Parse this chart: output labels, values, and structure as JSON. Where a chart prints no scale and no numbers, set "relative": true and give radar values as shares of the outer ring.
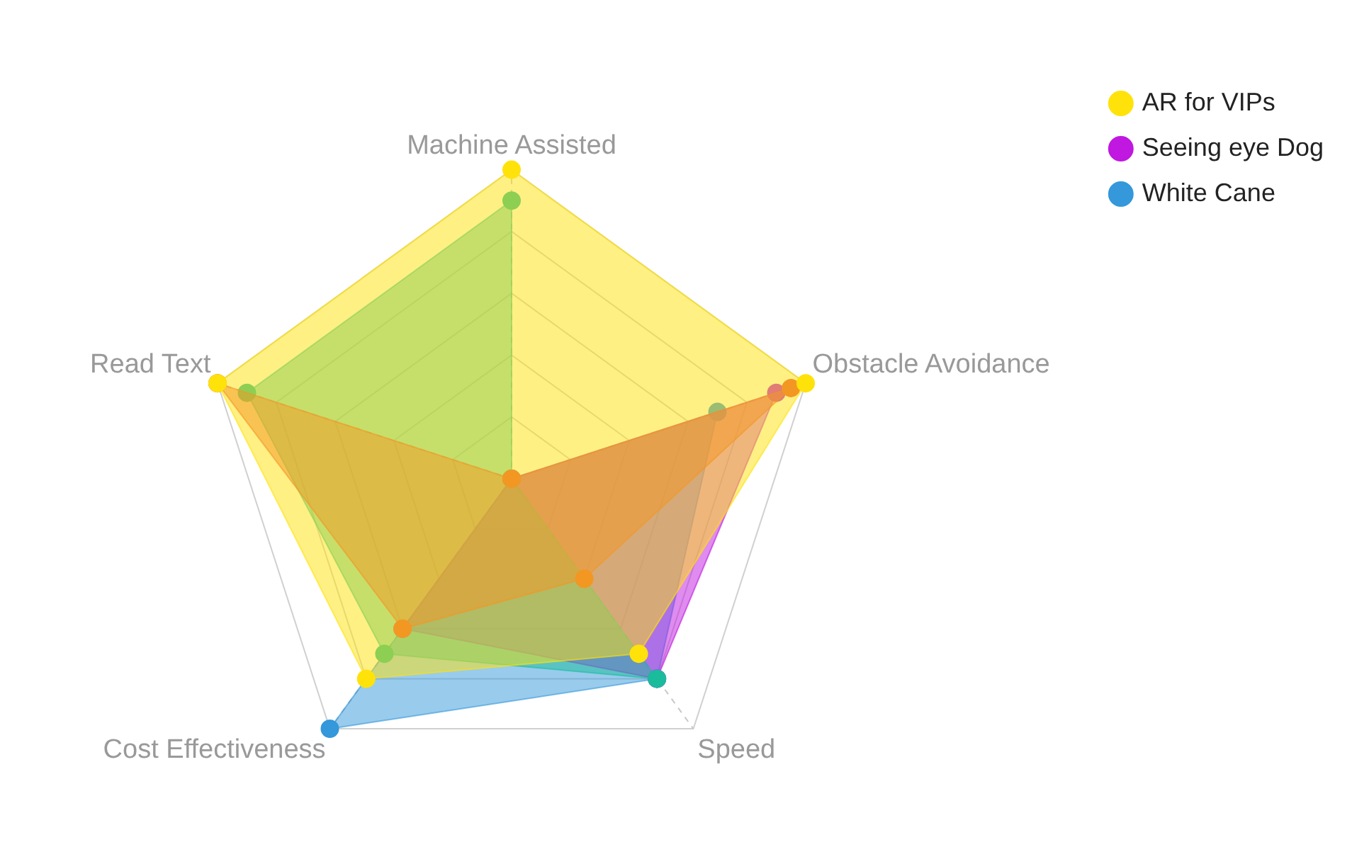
{
  "chart_data": {
    "type": "radar",
    "relative": true,
    "categories": [
      "Machine Assisted",
      "Obstacle Avoidance",
      "Speed",
      "Cost Effectiveness",
      "Read Text"
    ],
    "series": [
      {
        "name": "AR for VIPs",
        "color": "#ffe20a",
        "values": [
          1,
          1,
          0.7,
          0.8,
          1
        ]
      },
      {
        "color": "#e74c3c",
        "values": [
          0,
          0.95,
          0.4,
          0.6,
          1
        ]
      },
      {
        "color": "#1abc9c",
        "values": [
          0.9,
          0,
          0.8,
          0.7,
          0.9
        ]
      },
      {
        "name": "Seeing eye Dog",
        "color": "#c018e0",
        "values": [
          0,
          0.9,
          0.8,
          0.6,
          0
        ]
      },
      {
        "name": "White Cane",
        "color": "#3498db",
        "values": [
          0,
          0.7,
          0.8,
          1,
          0
        ]
      }
    ],
    "grid": true,
    "legend": "top right",
    "marker": "circle"
  }
}
